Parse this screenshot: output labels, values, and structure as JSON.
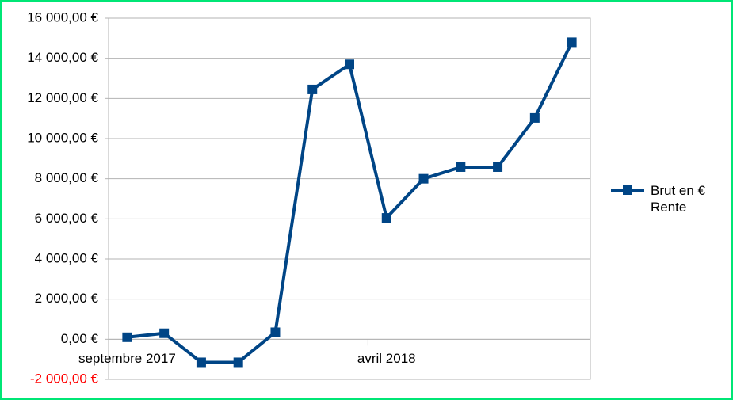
{
  "chart_data": {
    "type": "line",
    "categories": [
      "septembre 2017",
      null,
      null,
      null,
      null,
      null,
      null,
      "avril 2018",
      null,
      null,
      null,
      null,
      null
    ],
    "series": [
      {
        "name": "Brut en € Rente",
        "color": "#004586",
        "values": [
          100,
          300,
          -1150,
          -1150,
          350,
          12450,
          13700,
          6050,
          8000,
          8580,
          8580,
          11030,
          14800
        ]
      }
    ],
    "ylim": [
      -2000,
      16000
    ],
    "yticks": [
      {
        "value": -2000,
        "label": "-2 000,00 €"
      },
      {
        "value": 0,
        "label": "0,00 €"
      },
      {
        "value": 2000,
        "label": "2 000,00 €"
      },
      {
        "value": 4000,
        "label": "4 000,00 €"
      },
      {
        "value": 6000,
        "label": "6 000,00 €"
      },
      {
        "value": 8000,
        "label": "8 000,00 €"
      },
      {
        "value": 10000,
        "label": "10 000,00 €"
      },
      {
        "value": 12000,
        "label": "12 000,00 €"
      },
      {
        "value": 14000,
        "label": "14 000,00 €"
      },
      {
        "value": 16000,
        "label": "16 000,00 €"
      }
    ],
    "negative_tick_color": "#ff0000",
    "grid": true,
    "legend": "right"
  }
}
